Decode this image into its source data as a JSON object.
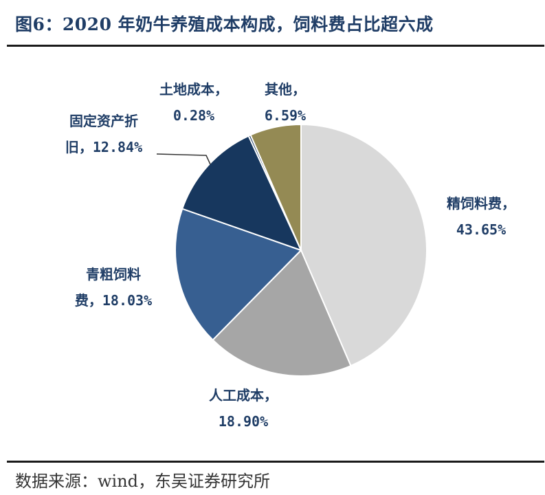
{
  "title": "图6：2020 年奶牛养殖成本构成，饲料费占比超六成",
  "source": "数据来源：wind，东吴证券研究所",
  "chart_data": {
    "type": "pie",
    "slices": [
      {
        "name": "精饲料费",
        "value": 43.65,
        "label_lines": [
          "精饲料费，",
          "43.65%"
        ],
        "color": "#d9d9d9"
      },
      {
        "name": "人工成本",
        "value": 18.9,
        "label_lines": [
          "人工成本，",
          "18.90%"
        ],
        "color": "#a6a6a6"
      },
      {
        "name": "青粗饲料费",
        "value": 18.03,
        "label_lines": [
          "青粗饲料",
          "费，18.03%"
        ],
        "color": "#375f91"
      },
      {
        "name": "固定资产折旧",
        "value": 12.84,
        "label_lines": [
          "固定资产折",
          "旧，12.84%"
        ],
        "color": "#17375e"
      },
      {
        "name": "土地成本",
        "value": 0.28,
        "label_lines": [
          "土地成本，",
          "0.28%"
        ],
        "color": "#17375e"
      },
      {
        "name": "其他",
        "value": 6.59,
        "label_lines": [
          "其他，",
          "6.59%"
        ],
        "color": "#948a54"
      }
    ],
    "label_color": "#1f3d66",
    "start_angle": "12 o'clock",
    "direction": "clockwise"
  }
}
